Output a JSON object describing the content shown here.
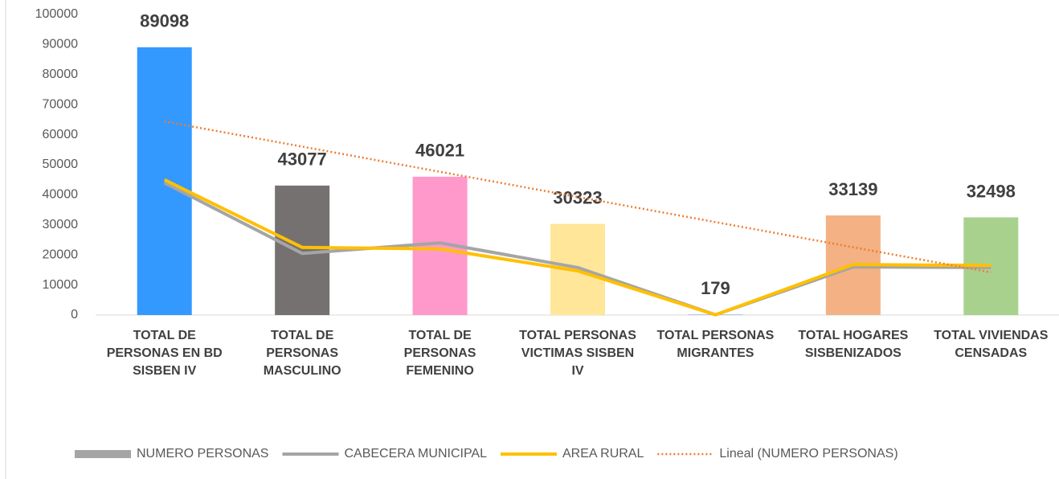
{
  "chart_data": {
    "type": "bar",
    "categories": [
      "TOTAL DE PERSONAS EN BD SISBEN IV",
      "TOTAL DE PERSONAS MASCULINO",
      "TOTAL DE PERSONAS FEMENINO",
      "TOTAL PERSONAS VICTIMAS SISBEN IV",
      "TOTAL PERSONAS MIGRANTES",
      "TOTAL HOGARES SISBENIZADOS",
      "TOTAL VIVIENDAS CENSADAS"
    ],
    "series": [
      {
        "name": "NUMERO PERSONAS",
        "type": "bar",
        "color": "#a5a5a5",
        "bar_colors": [
          "#3399ff",
          "#767171",
          "#ff99cc",
          "#ffe699",
          "#8faadc",
          "#f4b183",
          "#a9d18e"
        ],
        "values": [
          89098,
          43077,
          46021,
          30323,
          179,
          33139,
          32498
        ]
      },
      {
        "name": "CABECERA MUNICIPAL",
        "type": "line",
        "color": "#a5a5a5",
        "values": [
          44000,
          20500,
          24000,
          15800,
          100,
          16000,
          15800
        ]
      },
      {
        "name": "AREA RURAL",
        "type": "line",
        "color": "#ffc000",
        "values": [
          45000,
          22500,
          22000,
          14700,
          79,
          16800,
          16500
        ]
      },
      {
        "name": "Lineal (NUMERO PERSONAS)",
        "type": "trend",
        "color": "#ed7d31",
        "values": [
          64400,
          56033,
          47667,
          39300,
          30933,
          22567,
          14200
        ]
      }
    ],
    "ylim": [
      0,
      100000
    ],
    "yticks": [
      0,
      10000,
      20000,
      30000,
      40000,
      50000,
      60000,
      70000,
      80000,
      90000,
      100000
    ]
  }
}
